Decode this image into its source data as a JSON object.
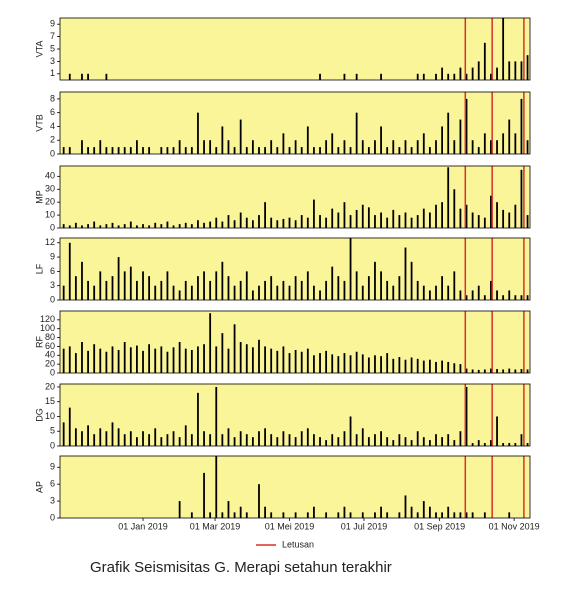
{
  "chart_data": {
    "type": "bar",
    "bar_color": "#000000",
    "background": "#fbf59a",
    "x": [
      "2018-10-28",
      "2018-11-02",
      "2018-11-07",
      "2018-11-12",
      "2018-11-17",
      "2018-11-22",
      "2018-11-27",
      "2018-12-02",
      "2018-12-07",
      "2018-12-12",
      "2018-12-17",
      "2018-12-22",
      "2018-12-27",
      "2019-01-01",
      "2019-01-06",
      "2019-01-11",
      "2019-01-16",
      "2019-01-21",
      "2019-01-26",
      "2019-01-31",
      "2019-02-05",
      "2019-02-10",
      "2019-02-15",
      "2019-02-20",
      "2019-02-25",
      "2019-03-02",
      "2019-03-07",
      "2019-03-12",
      "2019-03-17",
      "2019-03-22",
      "2019-03-27",
      "2019-04-01",
      "2019-04-06",
      "2019-04-11",
      "2019-04-16",
      "2019-04-21",
      "2019-04-26",
      "2019-05-01",
      "2019-05-06",
      "2019-05-11",
      "2019-05-16",
      "2019-05-21",
      "2019-05-26",
      "2019-05-31",
      "2019-06-05",
      "2019-06-10",
      "2019-06-15",
      "2019-06-20",
      "2019-06-25",
      "2019-06-30",
      "2019-07-05",
      "2019-07-10",
      "2019-07-15",
      "2019-07-20",
      "2019-07-25",
      "2019-07-30",
      "2019-08-04",
      "2019-08-09",
      "2019-08-14",
      "2019-08-19",
      "2019-08-24",
      "2019-08-29",
      "2019-09-03",
      "2019-09-08",
      "2019-09-13",
      "2019-09-18",
      "2019-09-23",
      "2019-09-28",
      "2019-10-03",
      "2019-10-08",
      "2019-10-13",
      "2019-10-18",
      "2019-10-23",
      "2019-10-28",
      "2019-11-02",
      "2019-11-07",
      "2019-11-12"
    ],
    "xlim": [
      "2018-10-25",
      "2019-11-14"
    ],
    "xticks": [
      {
        "value": "2019-01-01",
        "label": "01 Jan 2019"
      },
      {
        "value": "2019-03-01",
        "label": "01 Mar 2019"
      },
      {
        "value": "2019-05-01",
        "label": "01 Mei 2019"
      },
      {
        "value": "2019-07-01",
        "label": "01 Jul 2019"
      },
      {
        "value": "2019-09-01",
        "label": "01 Sep 2019"
      },
      {
        "value": "2019-11-01",
        "label": "01 Nov 2019"
      }
    ],
    "panels": [
      {
        "ylabel": "VTA",
        "ylim": [
          0,
          10
        ],
        "yticks": [
          1,
          3,
          5,
          7,
          9
        ],
        "values": [
          0,
          1,
          0,
          1,
          1,
          0,
          0,
          1,
          0,
          0,
          0,
          0,
          0,
          0,
          0,
          0,
          0,
          0,
          0,
          0,
          0,
          0,
          0,
          0,
          0,
          0,
          0,
          0,
          0,
          0,
          0,
          0,
          0,
          0,
          0,
          0,
          0,
          0,
          0,
          0,
          0,
          0,
          1,
          0,
          0,
          0,
          1,
          0,
          1,
          0,
          0,
          0,
          1,
          0,
          0,
          0,
          0,
          0,
          1,
          1,
          0,
          1,
          2,
          1,
          1,
          2,
          1,
          2,
          3,
          6,
          1,
          2,
          10,
          3,
          3,
          3,
          4
        ]
      },
      {
        "ylabel": "VTB",
        "ylim": [
          0,
          9
        ],
        "yticks": [
          0,
          2,
          4,
          6,
          8
        ],
        "values": [
          1,
          1,
          0,
          2,
          1,
          1,
          2,
          1,
          1,
          1,
          1,
          1,
          2,
          1,
          1,
          0,
          1,
          1,
          1,
          2,
          1,
          1,
          6,
          2,
          2,
          1,
          4,
          2,
          1,
          5,
          1,
          2,
          1,
          1,
          2,
          1,
          3,
          1,
          2,
          1,
          4,
          1,
          1,
          2,
          3,
          1,
          2,
          1,
          6,
          2,
          1,
          2,
          4,
          1,
          2,
          1,
          2,
          1,
          2,
          3,
          1,
          2,
          4,
          6,
          2,
          5,
          8,
          2,
          1,
          3,
          2,
          2,
          3,
          5,
          3,
          8,
          2
        ]
      },
      {
        "ylabel": "MP",
        "ylim": [
          0,
          48
        ],
        "yticks": [
          0,
          10,
          20,
          30,
          40
        ],
        "values": [
          3,
          2,
          4,
          2,
          3,
          5,
          2,
          3,
          4,
          2,
          3,
          5,
          2,
          3,
          2,
          4,
          3,
          5,
          2,
          3,
          4,
          3,
          6,
          4,
          5,
          8,
          5,
          10,
          6,
          12,
          8,
          6,
          10,
          20,
          8,
          6,
          7,
          8,
          6,
          10,
          8,
          22,
          10,
          8,
          15,
          12,
          20,
          10,
          14,
          18,
          16,
          10,
          12,
          8,
          14,
          10,
          12,
          8,
          10,
          15,
          12,
          18,
          20,
          47,
          30,
          15,
          18,
          12,
          10,
          8,
          25,
          20,
          14,
          12,
          18,
          45,
          10
        ]
      },
      {
        "ylabel": "LF",
        "ylim": [
          0,
          13
        ],
        "yticks": [
          0,
          3,
          6,
          9,
          12
        ],
        "values": [
          3,
          12,
          5,
          8,
          4,
          3,
          6,
          4,
          5,
          9,
          6,
          7,
          4,
          6,
          5,
          3,
          4,
          6,
          3,
          2,
          4,
          3,
          5,
          6,
          4,
          6,
          8,
          5,
          3,
          4,
          6,
          2,
          3,
          4,
          5,
          3,
          4,
          3,
          5,
          4,
          6,
          3,
          2,
          4,
          7,
          5,
          4,
          13,
          6,
          3,
          5,
          8,
          6,
          4,
          3,
          5,
          11,
          8,
          4,
          3,
          2,
          3,
          5,
          3,
          6,
          2,
          1,
          2,
          3,
          1,
          4,
          2,
          1,
          2,
          1,
          1,
          1
        ]
      },
      {
        "ylabel": "RF",
        "ylim": [
          0,
          140
        ],
        "yticks": [
          0,
          20,
          40,
          60,
          80,
          100,
          120
        ],
        "values": [
          55,
          60,
          45,
          70,
          50,
          65,
          55,
          48,
          60,
          52,
          70,
          58,
          62,
          50,
          65,
          55,
          60,
          48,
          58,
          70,
          55,
          52,
          60,
          65,
          135,
          60,
          90,
          55,
          110,
          70,
          65,
          58,
          75,
          60,
          55,
          50,
          60,
          45,
          52,
          48,
          55,
          40,
          45,
          50,
          42,
          38,
          45,
          40,
          48,
          42,
          35,
          40,
          38,
          45,
          32,
          36,
          30,
          35,
          32,
          28,
          30,
          25,
          28,
          25,
          22,
          20,
          10,
          8,
          7,
          8,
          10,
          9,
          8,
          10,
          8,
          9,
          8
        ]
      },
      {
        "ylabel": "DG",
        "ylim": [
          0,
          21
        ],
        "yticks": [
          0,
          5,
          10,
          15,
          20
        ],
        "values": [
          8,
          13,
          6,
          5,
          7,
          4,
          6,
          5,
          8,
          6,
          4,
          5,
          3,
          5,
          4,
          6,
          3,
          4,
          5,
          3,
          7,
          4,
          18,
          5,
          4,
          20,
          4,
          6,
          3,
          5,
          4,
          3,
          5,
          6,
          4,
          3,
          5,
          4,
          3,
          5,
          6,
          4,
          3,
          2,
          4,
          3,
          5,
          10,
          4,
          6,
          3,
          4,
          5,
          3,
          2,
          4,
          3,
          2,
          5,
          3,
          2,
          4,
          3,
          4,
          2,
          5,
          20,
          1,
          2,
          1,
          2,
          10,
          1,
          1,
          1,
          4,
          1
        ]
      },
      {
        "ylabel": "AP",
        "ylim": [
          0,
          11
        ],
        "yticks": [
          0,
          3,
          6,
          9
        ],
        "values": [
          0,
          0,
          0,
          0,
          0,
          0,
          0,
          0,
          0,
          0,
          0,
          0,
          0,
          0,
          0,
          0,
          0,
          0,
          0,
          3,
          0,
          1,
          0,
          8,
          1,
          11,
          1,
          3,
          1,
          2,
          1,
          0,
          6,
          2,
          1,
          0,
          1,
          0,
          1,
          0,
          1,
          2,
          0,
          1,
          0,
          1,
          2,
          1,
          0,
          1,
          0,
          1,
          2,
          1,
          0,
          1,
          4,
          2,
          1,
          3,
          2,
          1,
          1,
          2,
          1,
          1,
          1,
          1,
          0,
          1,
          0,
          0,
          0,
          1,
          0,
          0,
          0
        ]
      }
    ],
    "events": {
      "name": "Letusan",
      "color": "#d9302c",
      "x": [
        "2019-09-22",
        "2019-10-14",
        "2019-11-09"
      ]
    },
    "caption": "Grafik Seismisitas G. Merapi setahun terakhir"
  }
}
